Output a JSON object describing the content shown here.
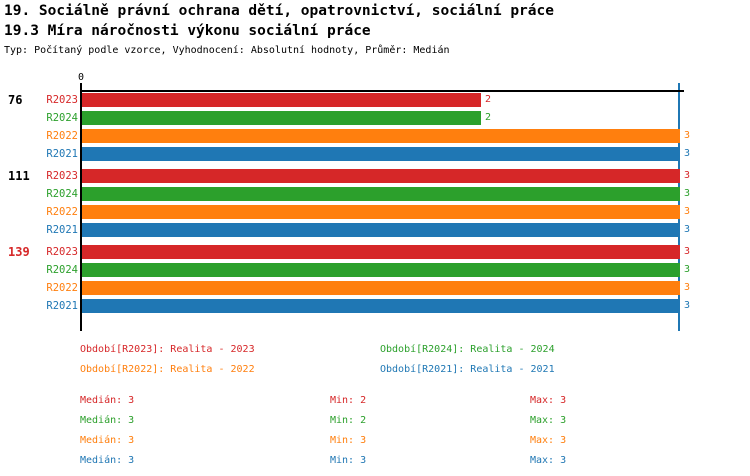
{
  "header": {
    "title_line1": "19. Sociálně právní ochrana dětí, opatrovnictví, sociální práce",
    "title_line2": "19.3 Míra náročnosti výkonu sociální práce",
    "subtitle": "Typ: Počítaný podle vzorce, Vyhodnocení: Absolutní hodnoty, Průměr: Medián"
  },
  "palette": {
    "red": "#d62728",
    "green": "#2ca02c",
    "orange": "#ff7f0e",
    "blue": "#1f77b4",
    "axis": "#000000"
  },
  "chart_data": {
    "type": "bar",
    "orientation": "horizontal",
    "title": "19.3 Míra náročnosti výkonu sociální práce",
    "xlim": [
      0,
      3
    ],
    "x_ticks": [
      {
        "value": 0,
        "label": "0"
      }
    ],
    "grid": false,
    "reference_line": {
      "value": 3,
      "color": "#1f77b4"
    },
    "series_order": [
      "R2023",
      "R2024",
      "R2022",
      "R2021"
    ],
    "groups": [
      {
        "label": "76",
        "label_color": "#000000",
        "bars": [
          {
            "series": "R2023",
            "value": 2,
            "color": "#d62728"
          },
          {
            "series": "R2024",
            "value": 2,
            "color": "#2ca02c"
          },
          {
            "series": "R2022",
            "value": 3,
            "color": "#ff7f0e"
          },
          {
            "series": "R2021",
            "value": 3,
            "color": "#1f77b4"
          }
        ]
      },
      {
        "label": "111",
        "label_color": "#000000",
        "bars": [
          {
            "series": "R2023",
            "value": 3,
            "color": "#d62728"
          },
          {
            "series": "R2024",
            "value": 3,
            "color": "#2ca02c"
          },
          {
            "series": "R2022",
            "value": 3,
            "color": "#ff7f0e"
          },
          {
            "series": "R2021",
            "value": 3,
            "color": "#1f77b4"
          }
        ]
      },
      {
        "label": "139",
        "label_color": "#d62728",
        "bars": [
          {
            "series": "R2023",
            "value": 3,
            "color": "#d62728"
          },
          {
            "series": "R2024",
            "value": 3,
            "color": "#2ca02c"
          },
          {
            "series": "R2022",
            "value": 3,
            "color": "#ff7f0e"
          },
          {
            "series": "R2021",
            "value": 3,
            "color": "#1f77b4"
          }
        ]
      }
    ]
  },
  "legend": {
    "items": [
      {
        "label": "Období[R2023]: Realita - 2023",
        "color": "#d62728"
      },
      {
        "label": "Období[R2024]: Realita - 2024",
        "color": "#2ca02c"
      },
      {
        "label": "Období[R2022]: Realita - 2022",
        "color": "#ff7f0e"
      },
      {
        "label": "Období[R2021]: Realita - 2021",
        "color": "#1f77b4"
      }
    ]
  },
  "stats": {
    "rows": [
      {
        "series": "R2023",
        "color": "#d62728",
        "median": "Medián: 3",
        "min": "Min: 2",
        "max": "Max: 3"
      },
      {
        "series": "R2024",
        "color": "#2ca02c",
        "median": "Medián: 3",
        "min": "Min: 2",
        "max": "Max: 3"
      },
      {
        "series": "R2022",
        "color": "#ff7f0e",
        "median": "Medián: 3",
        "min": "Min: 3",
        "max": "Max: 3"
      },
      {
        "series": "R2021",
        "color": "#1f77b4",
        "median": "Medián: 3",
        "min": "Min: 3",
        "max": "Max: 3"
      }
    ]
  }
}
